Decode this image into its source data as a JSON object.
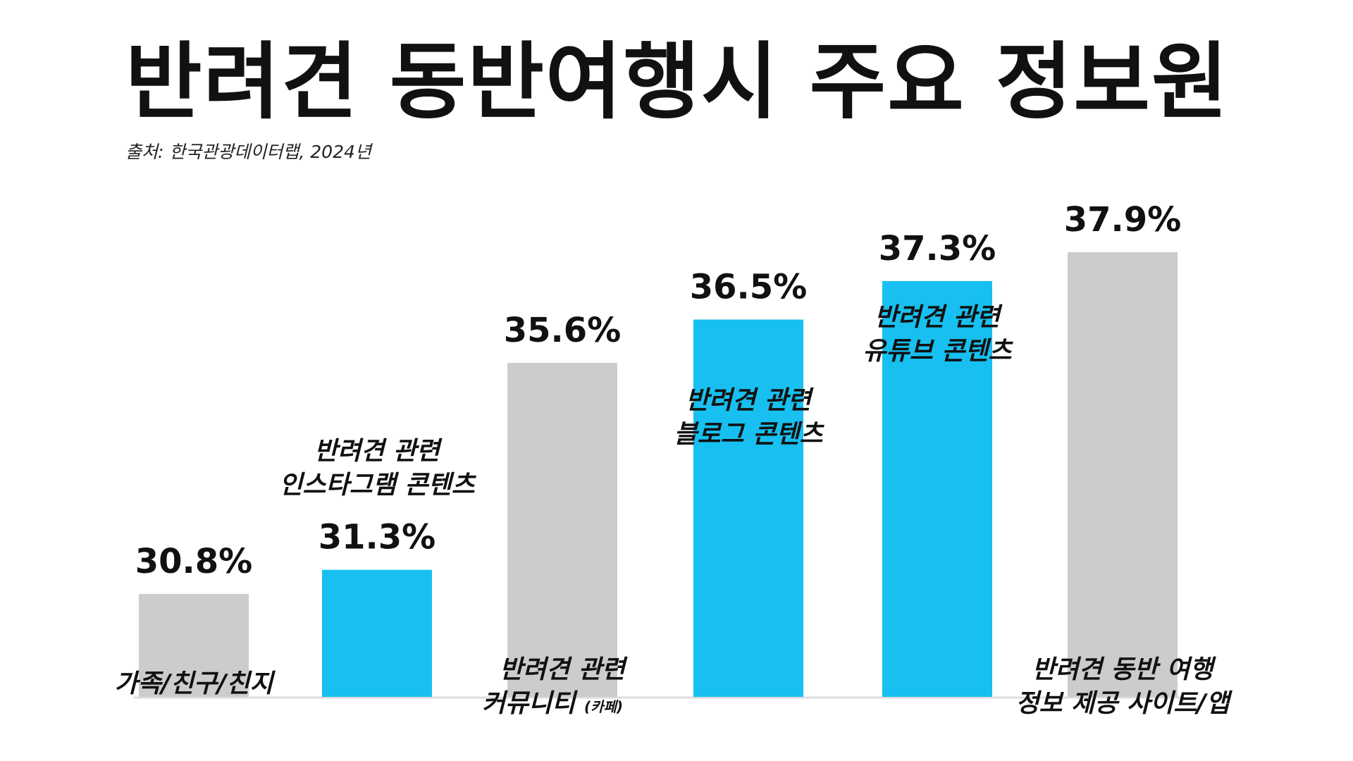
{
  "header": {
    "title": "반려견 동반여행시 주요 정보원",
    "source": "출처: 한국관광데이터랩, 2024년"
  },
  "colors": {
    "highlight": "#17C0F0",
    "neutral": "#CCCCCC",
    "baseline": "#DDDDDD",
    "text": "#111111"
  },
  "chart_data": {
    "type": "bar",
    "categories": [
      "가족/친구/친지",
      "반려견 관련 인스타그램 콘텐츠",
      "반려견 관련 커뮤니티 (카페)",
      "반려견 관련 블로그 콘텐츠",
      "반려견 관련 유튜브 콘텐츠",
      "반려견 동반 여행 정보 제공 사이트/앱"
    ],
    "label_lines": [
      [
        "가족/친구/친지"
      ],
      [
        "반려견 관련",
        "인스타그램 콘텐츠"
      ],
      [
        "반려견 관련",
        "커뮤니티",
        "(카페)"
      ],
      [
        "반려견 관련",
        "블로그 콘텐츠"
      ],
      [
        "반려견 관련",
        "유튜브 콘텐츠"
      ],
      [
        "반려견 동반 여행",
        "정보 제공 사이트/앱"
      ]
    ],
    "values": [
      30.8,
      31.3,
      35.6,
      36.5,
      37.3,
      37.9
    ],
    "value_labels": [
      "30.8%",
      "31.3%",
      "35.6%",
      "36.5%",
      "37.3%",
      "37.9%"
    ],
    "highlighted": [
      false,
      true,
      false,
      true,
      true,
      false
    ],
    "title": "반려견 동반여행시 주요 정보원",
    "xlabel": "",
    "ylabel": "",
    "unit": "%",
    "grid": false,
    "legend": "none"
  }
}
